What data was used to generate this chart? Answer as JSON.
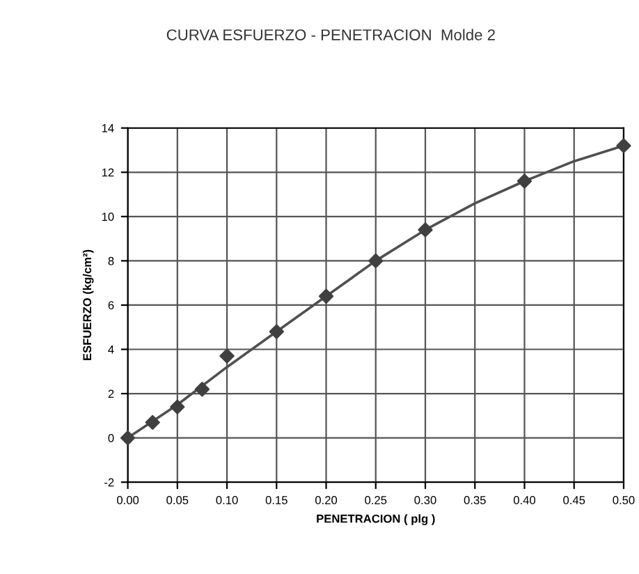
{
  "chart_data": {
    "type": "scatter",
    "title": "CURVA ESFUERZO - PENETRACION  Molde 2",
    "xlabel": "PENETRACION ( plg )",
    "ylabel": "ESFUERZO (kg/cm²)",
    "series": [
      {
        "color": "#404040",
        "marker": "diamond",
        "x": [
          0,
          0.025,
          0.05,
          0.075,
          0.1,
          0.15,
          0.2,
          0.25,
          0.3,
          0.4,
          0.5
        ],
        "values": [
          0,
          0.7,
          1.4,
          2.2,
          3.7,
          4.8,
          6.4,
          8.0,
          9.4,
          11.6,
          13.2
        ]
      },
      {
        "type": "line",
        "color": "#505050",
        "marker": "none",
        "x": [
          0,
          0.05,
          0.1,
          0.15,
          0.2,
          0.25,
          0.3,
          0.35,
          0.4,
          0.45,
          0.5
        ],
        "values": [
          0,
          1.5,
          3.2,
          4.8,
          6.4,
          8.0,
          9.4,
          10.6,
          11.6,
          12.5,
          13.2
        ]
      }
    ],
    "xlim": [
      0,
      0.5
    ],
    "ylim": [
      -2,
      14
    ],
    "xticks": [
      {
        "value": 0,
        "label": "0.00"
      },
      {
        "value": 0.05,
        "label": "0.05"
      },
      {
        "value": 0.1,
        "label": "0.10"
      },
      {
        "value": 0.15,
        "label": "0.15"
      },
      {
        "value": 0.2,
        "label": "0.20"
      },
      {
        "value": 0.25,
        "label": "0.25"
      },
      {
        "value": 0.3,
        "label": "0.30"
      },
      {
        "value": 0.35,
        "label": "0.35"
      },
      {
        "value": 0.4,
        "label": "0.40"
      },
      {
        "value": 0.45,
        "label": "0.45"
      },
      {
        "value": 0.5,
        "label": "0.50"
      }
    ],
    "yticks": [
      -2,
      0,
      2,
      4,
      6,
      8,
      10,
      12,
      14
    ],
    "grid": true
  }
}
